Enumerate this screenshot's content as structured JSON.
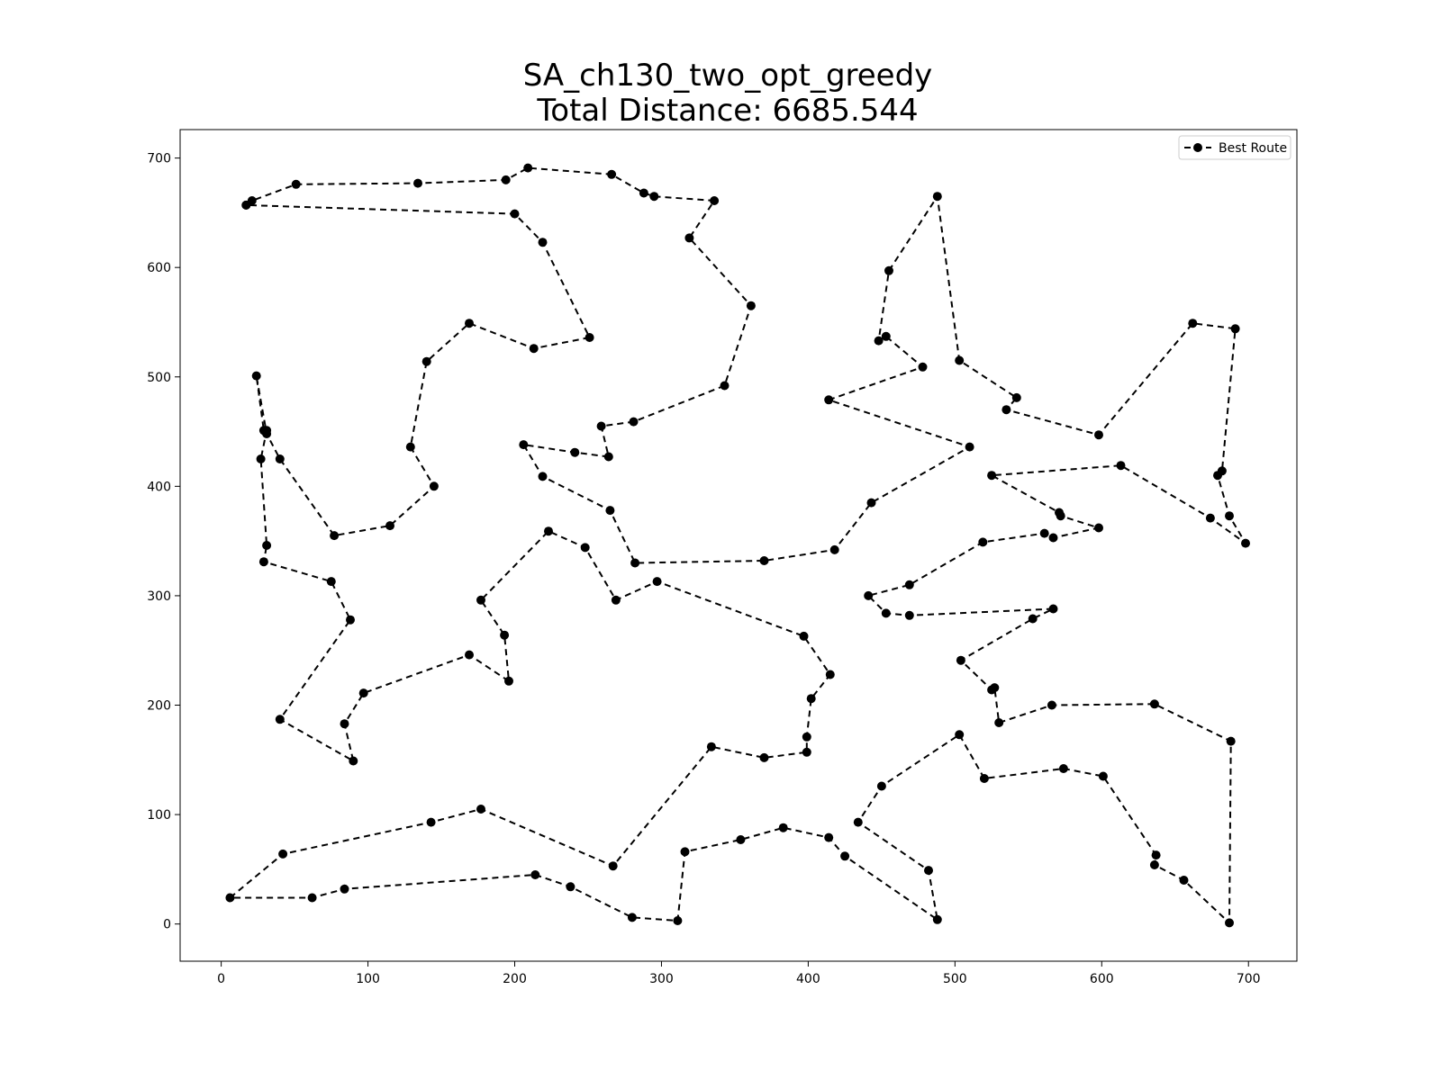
{
  "chart_data": {
    "type": "line",
    "title": "SA_ch130_two_opt_greedy",
    "subtitle": "Total Distance: 6685.544",
    "xlabel": "",
    "ylabel": "",
    "xlim": [
      -28,
      733
    ],
    "ylim": [
      -34,
      726
    ],
    "xticks": [
      0,
      100,
      200,
      300,
      400,
      500,
      600,
      700
    ],
    "yticks": [
      0,
      100,
      200,
      300,
      400,
      500,
      600,
      700
    ],
    "grid": false,
    "legend": {
      "position": "top-right"
    },
    "series": [
      {
        "name": "Best Route",
        "color": "#000000",
        "line_style": "dashed",
        "marker": "circle",
        "points": [
          [
            17,
            657
          ],
          [
            21,
            661
          ],
          [
            51,
            676
          ],
          [
            134,
            677
          ],
          [
            194,
            680
          ],
          [
            209,
            691
          ],
          [
            266,
            685
          ],
          [
            288,
            668
          ],
          [
            295,
            665
          ],
          [
            336,
            661
          ],
          [
            319,
            627
          ],
          [
            361,
            565
          ],
          [
            343,
            492
          ],
          [
            281,
            459
          ],
          [
            259,
            455
          ],
          [
            264,
            427
          ],
          [
            241,
            431
          ],
          [
            206,
            438
          ],
          [
            219,
            409
          ],
          [
            265,
            378
          ],
          [
            282,
            330
          ],
          [
            370,
            332
          ],
          [
            418,
            342
          ],
          [
            443,
            385
          ],
          [
            510,
            436
          ],
          [
            414,
            479
          ],
          [
            478,
            509
          ],
          [
            453,
            537
          ],
          [
            448,
            533
          ],
          [
            455,
            597
          ],
          [
            488,
            665
          ],
          [
            503,
            515
          ],
          [
            542,
            481
          ],
          [
            535,
            470
          ],
          [
            598,
            447
          ],
          [
            662,
            549
          ],
          [
            691,
            544
          ],
          [
            682,
            414
          ],
          [
            679,
            410
          ],
          [
            687,
            373
          ],
          [
            698,
            348
          ],
          [
            674,
            371
          ],
          [
            613,
            419
          ],
          [
            525,
            410
          ],
          [
            571,
            376
          ],
          [
            572,
            373
          ],
          [
            598,
            362
          ],
          [
            567,
            353
          ],
          [
            561,
            357
          ],
          [
            519,
            349
          ],
          [
            469,
            310
          ],
          [
            441,
            300
          ],
          [
            453,
            284
          ],
          [
            469,
            282
          ],
          [
            567,
            288
          ],
          [
            553,
            279
          ],
          [
            504,
            241
          ],
          [
            525,
            214
          ],
          [
            527,
            216
          ],
          [
            530,
            184
          ],
          [
            566,
            200
          ],
          [
            636,
            201
          ],
          [
            688,
            167
          ],
          [
            687,
            1
          ],
          [
            656,
            40
          ],
          [
            636,
            54
          ],
          [
            637,
            63
          ],
          [
            601,
            135
          ],
          [
            574,
            142
          ],
          [
            520,
            133
          ],
          [
            503,
            173
          ],
          [
            450,
            126
          ],
          [
            434,
            93
          ],
          [
            482,
            49
          ],
          [
            488,
            4
          ],
          [
            425,
            62
          ],
          [
            414,
            79
          ],
          [
            383,
            88
          ],
          [
            354,
            77
          ],
          [
            316,
            66
          ],
          [
            311,
            3
          ],
          [
            280,
            6
          ],
          [
            238,
            34
          ],
          [
            214,
            45
          ],
          [
            84,
            32
          ],
          [
            62,
            24
          ],
          [
            6,
            24
          ],
          [
            42,
            64
          ],
          [
            143,
            93
          ],
          [
            177,
            105
          ],
          [
            267,
            53
          ],
          [
            334,
            162
          ],
          [
            370,
            152
          ],
          [
            399,
            157
          ],
          [
            399,
            171
          ],
          [
            402,
            206
          ],
          [
            415,
            228
          ],
          [
            397,
            263
          ],
          [
            297,
            313
          ],
          [
            269,
            296
          ],
          [
            248,
            344
          ],
          [
            223,
            359
          ],
          [
            177,
            296
          ],
          [
            193,
            264
          ],
          [
            196,
            222
          ],
          [
            169,
            246
          ],
          [
            97,
            211
          ],
          [
            84,
            183
          ],
          [
            90,
            149
          ],
          [
            40,
            187
          ],
          [
            88,
            278
          ],
          [
            75,
            313
          ],
          [
            29,
            331
          ],
          [
            31,
            346
          ],
          [
            27,
            425
          ],
          [
            31,
            451
          ],
          [
            29,
            451
          ],
          [
            24,
            501
          ],
          [
            31,
            448
          ],
          [
            40,
            425
          ],
          [
            77,
            355
          ],
          [
            115,
            364
          ],
          [
            145,
            400
          ],
          [
            129,
            436
          ],
          [
            140,
            514
          ],
          [
            169,
            549
          ],
          [
            213,
            526
          ],
          [
            251,
            536
          ],
          [
            219,
            623
          ],
          [
            200,
            649
          ],
          [
            17,
            657
          ]
        ]
      }
    ]
  }
}
